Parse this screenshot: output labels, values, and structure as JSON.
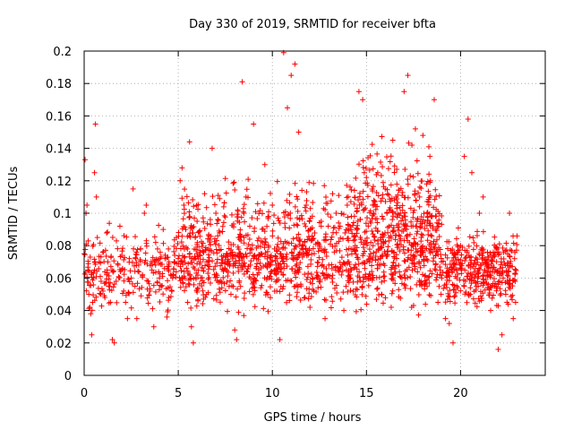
{
  "chart_data": {
    "type": "scatter",
    "title": "Day 330 of 2019, SRMTID for receiver bfta",
    "xlabel": "GPS time / hours",
    "ylabel": "SRMTID / TECUs",
    "xlim": [
      0,
      24.5
    ],
    "ylim": [
      0,
      0.2
    ],
    "x_ticks": [
      0,
      5,
      10,
      15,
      20
    ],
    "x_tick_labels": [
      "0",
      "5",
      "10",
      "15",
      "20"
    ],
    "y_ticks": [
      0,
      0.02,
      0.04,
      0.06,
      0.08,
      0.1,
      0.12,
      0.14,
      0.16,
      0.18,
      0.2
    ],
    "y_tick_labels": [
      "0",
      "0.02",
      "0.04",
      "0.06",
      "0.08",
      "0.1",
      "0.12",
      "0.14",
      "0.16",
      "0.18",
      "0.2"
    ],
    "grid": true,
    "marker": "+",
    "series": [
      {
        "name": "bfta",
        "color": "#ff0000",
        "points": [
          [
            0.0,
            0.075
          ],
          [
            0.05,
            0.133
          ],
          [
            0.1,
            0.1
          ],
          [
            0.15,
            0.105
          ],
          [
            0.2,
            0.065
          ],
          [
            0.25,
            0.05
          ],
          [
            0.3,
            0.042
          ],
          [
            0.35,
            0.038
          ],
          [
            0.4,
            0.025
          ],
          [
            0.45,
            0.045
          ],
          [
            0.5,
            0.06
          ],
          [
            0.55,
            0.125
          ],
          [
            0.6,
            0.155
          ],
          [
            0.65,
            0.11
          ],
          [
            0.7,
            0.085
          ],
          [
            0.8,
            0.07
          ],
          [
            0.9,
            0.058
          ],
          [
            1.0,
            0.052
          ],
          [
            1.1,
            0.048
          ],
          [
            1.2,
            0.062
          ],
          [
            1.3,
            0.055
          ],
          [
            1.4,
            0.045
          ],
          [
            1.5,
            0.022
          ],
          [
            1.6,
            0.02
          ],
          [
            1.7,
            0.058
          ],
          [
            1.8,
            0.068
          ],
          [
            1.9,
            0.092
          ],
          [
            2.0,
            0.065
          ],
          [
            2.1,
            0.052
          ],
          [
            2.2,
            0.045
          ],
          [
            2.3,
            0.035
          ],
          [
            2.4,
            0.072
          ],
          [
            2.5,
            0.06
          ],
          [
            2.6,
            0.115
          ],
          [
            2.7,
            0.055
          ],
          [
            2.8,
            0.035
          ],
          [
            2.9,
            0.068
          ],
          [
            3.0,
            0.078
          ],
          [
            3.1,
            0.062
          ],
          [
            3.2,
            0.1
          ],
          [
            3.3,
            0.105
          ],
          [
            3.4,
            0.058
          ],
          [
            3.5,
            0.052
          ],
          [
            3.6,
            0.065
          ],
          [
            3.7,
            0.03
          ],
          [
            3.8,
            0.082
          ],
          [
            3.9,
            0.078
          ],
          [
            4.0,
            0.06
          ],
          [
            4.1,
            0.055
          ],
          [
            4.2,
            0.09
          ],
          [
            4.3,
            0.072
          ],
          [
            4.4,
            0.036
          ],
          [
            4.5,
            0.048
          ],
          [
            4.6,
            0.062
          ],
          [
            4.7,
            0.06
          ],
          [
            4.8,
            0.07
          ],
          [
            4.9,
            0.085
          ],
          [
            5.0,
            0.072
          ],
          [
            5.1,
            0.12
          ],
          [
            5.2,
            0.128
          ],
          [
            5.3,
            0.105
          ],
          [
            5.4,
            0.09
          ],
          [
            5.5,
            0.045
          ],
          [
            5.6,
            0.144
          ],
          [
            5.7,
            0.03
          ],
          [
            5.8,
            0.02
          ],
          [
            5.9,
            0.085
          ],
          [
            6.0,
            0.095
          ],
          [
            6.2,
            0.06
          ],
          [
            6.4,
            0.112
          ],
          [
            6.6,
            0.078
          ],
          [
            6.8,
            0.14
          ],
          [
            7.0,
            0.1
          ],
          [
            7.2,
            0.088
          ],
          [
            7.4,
            0.065
          ],
          [
            7.6,
            0.075
          ],
          [
            7.8,
            0.05
          ],
          [
            8.0,
            0.028
          ],
          [
            8.1,
            0.022
          ],
          [
            8.2,
            0.085
          ],
          [
            8.4,
            0.181
          ],
          [
            8.6,
            0.11
          ],
          [
            8.8,
            0.092
          ],
          [
            9.0,
            0.155
          ],
          [
            9.2,
            0.062
          ],
          [
            9.4,
            0.075
          ],
          [
            9.6,
            0.13
          ],
          [
            9.8,
            0.098
          ],
          [
            10.0,
            0.105
          ],
          [
            10.2,
            0.068
          ],
          [
            10.4,
            0.022
          ],
          [
            10.6,
            0.199
          ],
          [
            10.8,
            0.165
          ],
          [
            11.0,
            0.185
          ],
          [
            11.2,
            0.192
          ],
          [
            11.4,
            0.15
          ],
          [
            11.6,
            0.08
          ],
          [
            11.8,
            0.105
          ],
          [
            12.0,
            0.042
          ],
          [
            12.2,
            0.052
          ],
          [
            12.4,
            0.06
          ],
          [
            12.6,
            0.095
          ],
          [
            12.8,
            0.035
          ],
          [
            13.0,
            0.068
          ],
          [
            13.2,
            0.112
          ],
          [
            13.4,
            0.088
          ],
          [
            13.6,
            0.092
          ],
          [
            13.8,
            0.04
          ],
          [
            14.0,
            0.07
          ],
          [
            14.2,
            0.065
          ],
          [
            14.4,
            0.08
          ],
          [
            14.6,
            0.175
          ],
          [
            14.8,
            0.17
          ],
          [
            15.0,
            0.122
          ],
          [
            15.2,
            0.095
          ],
          [
            15.4,
            0.105
          ],
          [
            15.6,
            0.125
          ],
          [
            15.8,
            0.05
          ],
          [
            16.0,
            0.115
          ],
          [
            16.2,
            0.085
          ],
          [
            16.4,
            0.145
          ],
          [
            16.6,
            0.072
          ],
          [
            16.8,
            0.1
          ],
          [
            17.0,
            0.175
          ],
          [
            17.2,
            0.185
          ],
          [
            17.4,
            0.042
          ],
          [
            17.6,
            0.152
          ],
          [
            17.8,
            0.07
          ],
          [
            18.0,
            0.148
          ],
          [
            18.2,
            0.118
          ],
          [
            18.4,
            0.12
          ],
          [
            18.6,
            0.17
          ],
          [
            18.8,
            0.045
          ],
          [
            19.0,
            0.06
          ],
          [
            19.2,
            0.035
          ],
          [
            19.4,
            0.032
          ],
          [
            19.6,
            0.02
          ],
          [
            19.8,
            0.06
          ],
          [
            20.0,
            0.08
          ],
          [
            20.2,
            0.135
          ],
          [
            20.4,
            0.158
          ],
          [
            20.6,
            0.125
          ],
          [
            20.8,
            0.062
          ],
          [
            21.0,
            0.1
          ],
          [
            21.2,
            0.11
          ],
          [
            21.4,
            0.07
          ],
          [
            21.6,
            0.04
          ],
          [
            21.8,
            0.055
          ],
          [
            22.0,
            0.016
          ],
          [
            22.2,
            0.025
          ],
          [
            22.4,
            0.05
          ],
          [
            22.6,
            0.1
          ],
          [
            22.8,
            0.035
          ],
          [
            23.0,
            0.086
          ]
        ],
        "dense_bands": [
          {
            "x_from": 0.0,
            "x_to": 23.0,
            "y_center": 0.065,
            "y_spread": 0.02
          },
          {
            "x_from": 5.0,
            "x_to": 19.0,
            "y_center": 0.085,
            "y_spread": 0.028
          },
          {
            "x_from": 14.0,
            "x_to": 18.5,
            "y_center": 0.105,
            "y_spread": 0.03
          },
          {
            "x_from": 19.2,
            "x_to": 23.0,
            "y_center": 0.065,
            "y_spread": 0.02
          }
        ]
      }
    ]
  }
}
